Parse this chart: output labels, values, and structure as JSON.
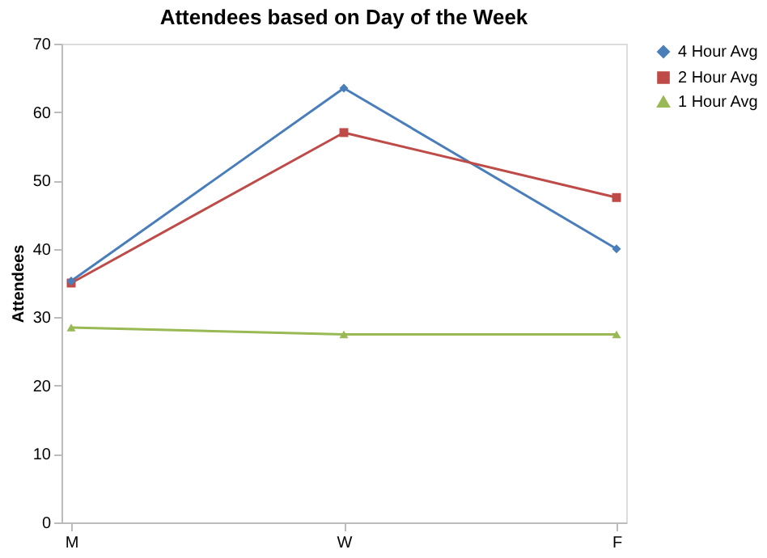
{
  "chart_data": {
    "type": "line",
    "title": "Attendees based on Day of the Week",
    "ylabel": "Attendees",
    "categories": [
      "M",
      "W",
      "F"
    ],
    "series": [
      {
        "name": "4 Hour Avg",
        "color": "#4a7ebb",
        "marker": "diamond",
        "values": [
          35.3,
          63.5,
          40
        ]
      },
      {
        "name": "2 Hour Avg",
        "color": "#be4b48",
        "marker": "square",
        "values": [
          35,
          57,
          47.5
        ]
      },
      {
        "name": "1 Hour Avg",
        "color": "#98b954",
        "marker": "triangle",
        "values": [
          28.5,
          27.5,
          27.5
        ]
      }
    ],
    "ylim": [
      0,
      70
    ],
    "yticks": [
      0,
      10,
      20,
      30,
      40,
      50,
      60,
      70
    ],
    "grid": false,
    "legend": "right"
  }
}
